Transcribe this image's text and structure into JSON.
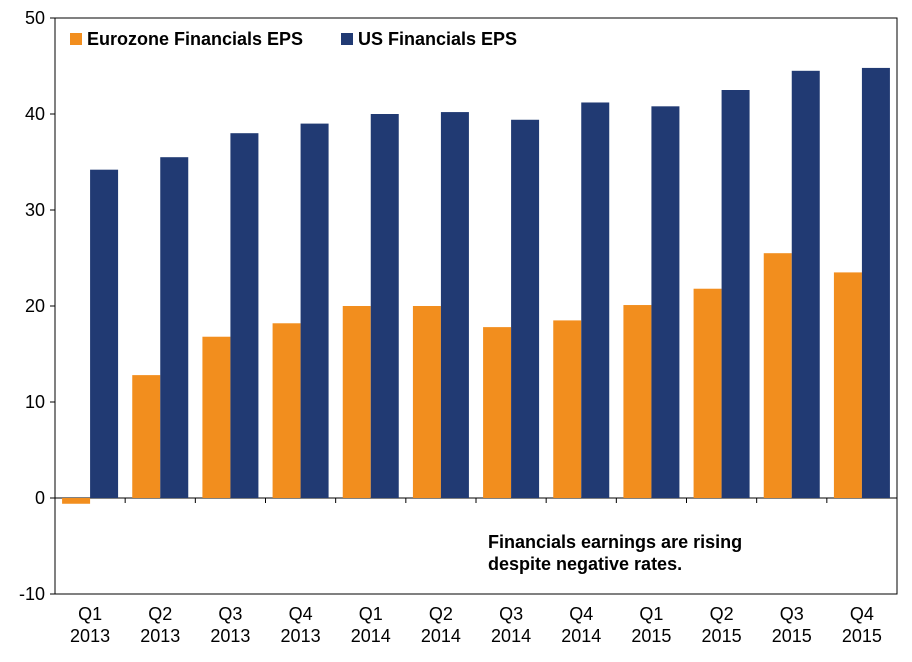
{
  "chart_data": {
    "type": "bar",
    "categories": [
      [
        "Q1",
        "2013"
      ],
      [
        "Q2",
        "2013"
      ],
      [
        "Q3",
        "2013"
      ],
      [
        "Q4",
        "2013"
      ],
      [
        "Q1",
        "2014"
      ],
      [
        "Q2",
        "2014"
      ],
      [
        "Q3",
        "2014"
      ],
      [
        "Q4",
        "2014"
      ],
      [
        "Q1",
        "2015"
      ],
      [
        "Q2",
        "2015"
      ],
      [
        "Q3",
        "2015"
      ],
      [
        "Q4",
        "2015"
      ]
    ],
    "series": [
      {
        "name": "Eurozone Financials EPS",
        "color": "#F28E1E",
        "values": [
          -0.6,
          12.8,
          16.8,
          18.2,
          20.0,
          20.0,
          17.8,
          18.5,
          20.1,
          21.8,
          25.5,
          23.5
        ]
      },
      {
        "name": "US Financials EPS",
        "color": "#213A73",
        "values": [
          34.2,
          35.5,
          38.0,
          39.0,
          40.0,
          40.2,
          39.4,
          41.2,
          40.8,
          42.5,
          44.5,
          44.8
        ]
      }
    ],
    "ylim": [
      -10,
      50
    ],
    "yticks": [
      -10,
      0,
      10,
      20,
      30,
      40,
      50
    ],
    "ytick_labels": [
      "-10",
      "0",
      "10",
      "20",
      "30",
      "40",
      "50"
    ],
    "grid": false,
    "legend_position": "top-left",
    "annotation": [
      "Financials earnings are rising",
      "despite negative rates."
    ],
    "title": "",
    "xlabel": "",
    "ylabel": ""
  }
}
